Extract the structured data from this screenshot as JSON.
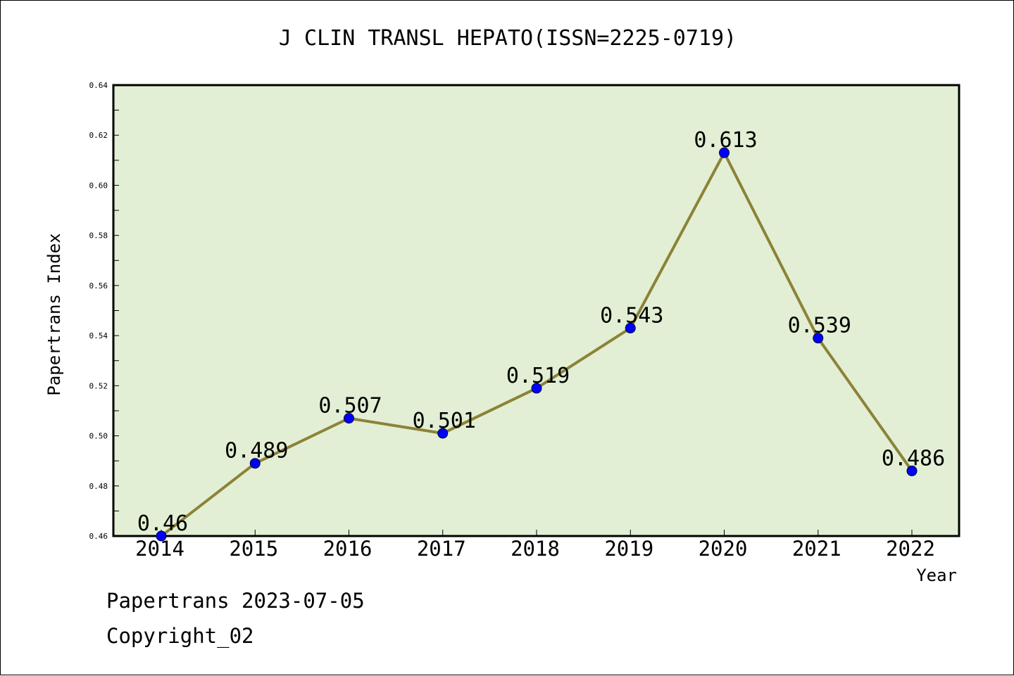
{
  "chart_data": {
    "type": "line",
    "title": "J CLIN TRANSL HEPATO(ISSN=2225-0719)",
    "xlabel": "Year",
    "ylabel": "Papertrans Index",
    "categories": [
      "2014",
      "2015",
      "2016",
      "2017",
      "2018",
      "2019",
      "2020",
      "2021",
      "2022"
    ],
    "series": [
      {
        "values": [
          0.46,
          0.489,
          0.507,
          0.501,
          0.519,
          0.543,
          0.613,
          0.539,
          0.486
        ],
        "labels": [
          "0.46",
          "0.489",
          "0.507",
          "0.501",
          "0.519",
          "0.543",
          "0.613",
          "0.539",
          "0.486"
        ]
      }
    ],
    "ylim": [
      0.46,
      0.64
    ],
    "yticks": [
      "0.46",
      "0.48",
      "0.50",
      "0.52",
      "0.54",
      "0.56",
      "0.58",
      "0.60",
      "0.62",
      "0.64"
    ],
    "grid": false,
    "legend": "none",
    "colors": {
      "plot_background": "#e2efd4",
      "line": "#8c8237",
      "marker": "#0000ff"
    }
  },
  "footer": {
    "date_text": "Papertrans 2023-07-05",
    "copyright_text": "Copyright_02"
  }
}
